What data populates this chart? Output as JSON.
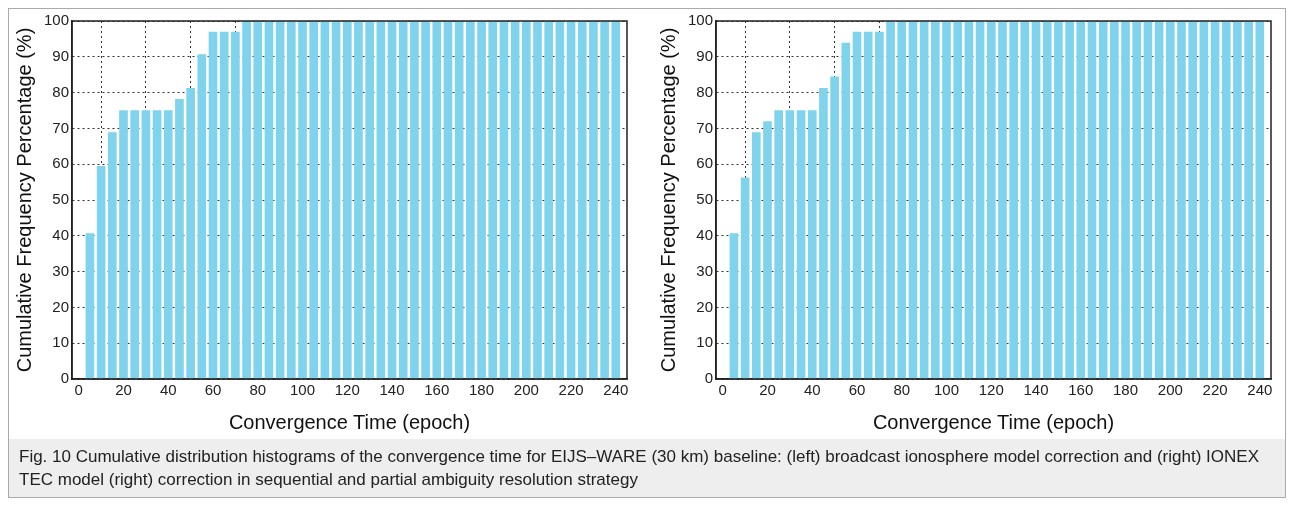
{
  "chart_data": [
    {
      "type": "bar",
      "xlabel": "Convergence Time (epoch)",
      "ylabel": "Cumulative Frequency Percentage (%)",
      "x": [
        5,
        10,
        15,
        20,
        25,
        30,
        35,
        40,
        45,
        50,
        55,
        60,
        65,
        70,
        75,
        80,
        85,
        90,
        95,
        100,
        105,
        110,
        115,
        120,
        125,
        130,
        135,
        140,
        145,
        150,
        155,
        160,
        165,
        170,
        175,
        180,
        185,
        190,
        195,
        200,
        205,
        210,
        215,
        220,
        225,
        230,
        235,
        240
      ],
      "values": [
        40.6,
        59.4,
        68.8,
        75,
        75,
        75,
        75,
        75,
        78.1,
        81.2,
        90.6,
        96.9,
        96.9,
        96.9,
        100,
        100,
        100,
        100,
        100,
        100,
        100,
        100,
        100,
        100,
        100,
        100,
        100,
        100,
        100,
        100,
        100,
        100,
        100,
        100,
        100,
        100,
        100,
        100,
        100,
        100,
        100,
        100,
        100,
        100,
        100,
        100,
        100,
        100
      ],
      "color": "#7fd3ec",
      "xlim": [
        -3,
        245
      ],
      "xticks": [
        0,
        20,
        40,
        60,
        80,
        100,
        120,
        140,
        160,
        180,
        200,
        220,
        240
      ],
      "ylim": [
        0,
        100
      ],
      "yticks": [
        0,
        10,
        20,
        30,
        40,
        50,
        60,
        70,
        80,
        90,
        100
      ],
      "grid": true,
      "legend": false,
      "annotations": [
        "Fig. 10  Cumulative distribution histograms of the convergence time for EIJS–WARE (30 km) baseline: (left) broadcast ionosphere model correction and (right) IONEX TEC model (right) correction in sequential and partial ambiguity resolution strategy"
      ]
    },
    {
      "type": "bar",
      "xlabel": "Convergence Time (epoch)",
      "ylabel": "Cumulative Frequency Percentage (%)",
      "x": [
        5,
        10,
        15,
        20,
        25,
        30,
        35,
        40,
        45,
        50,
        55,
        60,
        65,
        70,
        75,
        80,
        85,
        90,
        95,
        100,
        105,
        110,
        115,
        120,
        125,
        130,
        135,
        140,
        145,
        150,
        155,
        160,
        165,
        170,
        175,
        180,
        185,
        190,
        195,
        200,
        205,
        210,
        215,
        220,
        225,
        230,
        235,
        240
      ],
      "values": [
        40.6,
        56.2,
        68.8,
        71.9,
        75,
        75,
        75,
        75,
        81.2,
        84.4,
        93.8,
        96.9,
        96.9,
        96.9,
        100,
        100,
        100,
        100,
        100,
        100,
        100,
        100,
        100,
        100,
        100,
        100,
        100,
        100,
        100,
        100,
        100,
        100,
        100,
        100,
        100,
        100,
        100,
        100,
        100,
        100,
        100,
        100,
        100,
        100,
        100,
        100,
        100,
        100
      ],
      "color": "#7fd3ec",
      "xlim": [
        -3,
        245
      ],
      "xticks": [
        0,
        20,
        40,
        60,
        80,
        100,
        120,
        140,
        160,
        180,
        200,
        220,
        240
      ],
      "ylim": [
        0,
        100
      ],
      "yticks": [
        0,
        10,
        20,
        30,
        40,
        50,
        60,
        70,
        80,
        90,
        100
      ],
      "grid": true,
      "legend": false
    }
  ]
}
